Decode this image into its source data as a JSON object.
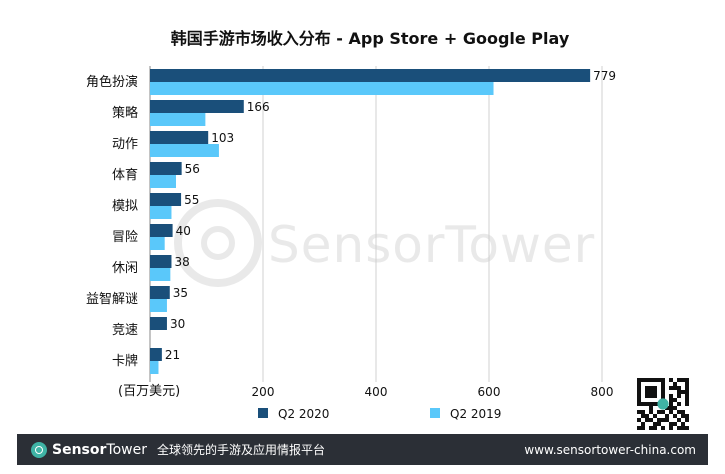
{
  "chart_data": {
    "type": "bar",
    "orientation": "horizontal",
    "title": "韩国手游市场收入分布 - App Store + Google Play",
    "categories": [
      "角色扮演",
      "策略",
      "动作",
      "体育",
      "模拟",
      "冒险",
      "休闲",
      "益智解谜",
      "竞速",
      "卡牌"
    ],
    "series": [
      {
        "name": "Q2 2020",
        "color": "#1a4f7a",
        "values": [
          779,
          166,
          103,
          56,
          55,
          40,
          38,
          35,
          30,
          21
        ]
      },
      {
        "name": "Q2 2019",
        "color": "#5ac8fa",
        "values": [
          608,
          98,
          122,
          46,
          38,
          26,
          36,
          30,
          null,
          15
        ]
      }
    ],
    "data_labels_series": "Q2 2020",
    "xlabel": "(百万美元)",
    "ylabel": "",
    "xlim": [
      0,
      800
    ],
    "xticks": [
      200,
      400,
      600,
      800
    ],
    "grid": true,
    "legend": "bottom"
  },
  "watermark": "SensorTower",
  "footer": {
    "brand_part1": "Sensor",
    "brand_part2": "Tower",
    "tagline": "全球领先的手游及应用情报平台",
    "website": "www.sensortower-china.com"
  },
  "icons": {
    "logo": "sensortower-logo-icon",
    "qr": "qr-code-icon"
  }
}
